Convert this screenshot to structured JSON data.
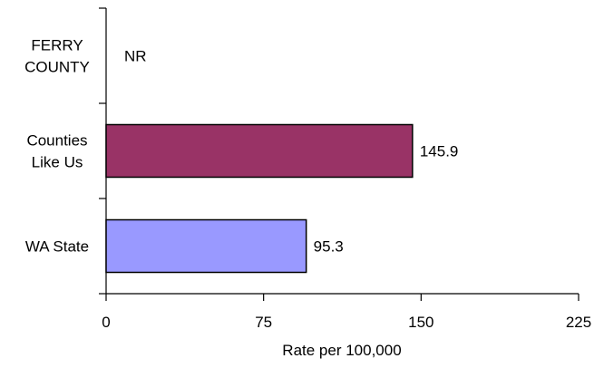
{
  "chart_data": {
    "type": "bar",
    "orientation": "horizontal",
    "categories": [
      [
        "FERRY",
        "COUNTY"
      ],
      [
        "Counties",
        "Like Us"
      ],
      [
        "WA State"
      ]
    ],
    "values": [
      null,
      145.9,
      95.3
    ],
    "data_labels": [
      "NR",
      "145.9",
      "95.3"
    ],
    "colors": [
      "#ffffff",
      "#993366",
      "#9999ff"
    ],
    "xlabel": "Rate per 100,000",
    "xlim": [
      0,
      225
    ],
    "xticks": [
      0,
      75,
      150,
      225
    ],
    "xtick_labels": [
      "0",
      "75",
      "150",
      "225"
    ],
    "grid": false,
    "legend": "none"
  }
}
